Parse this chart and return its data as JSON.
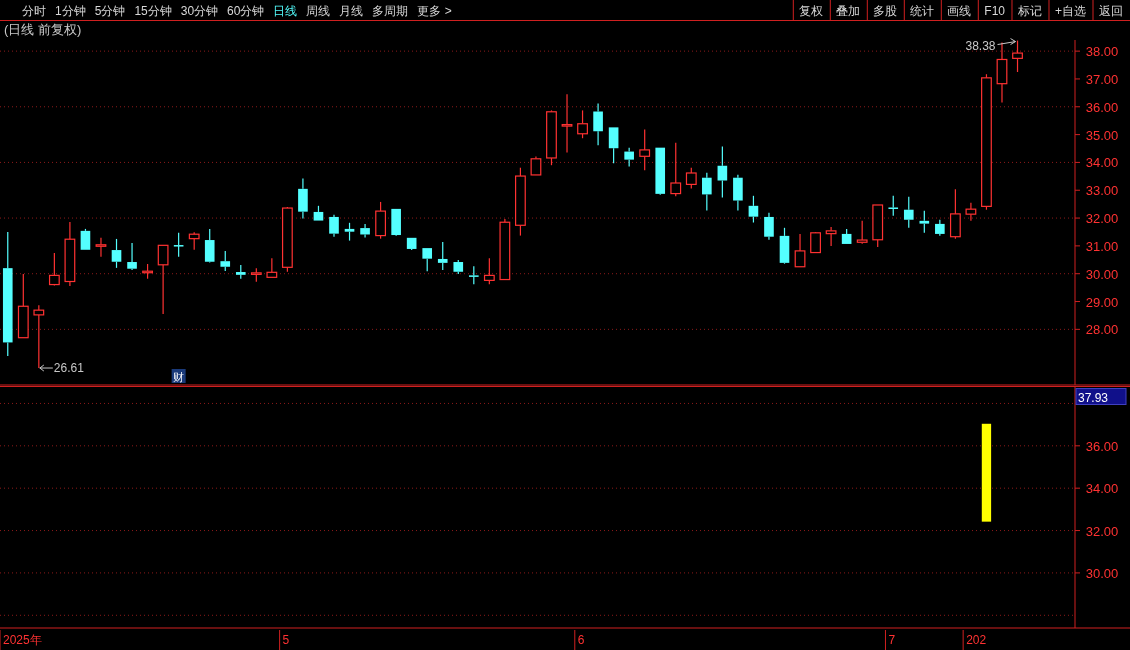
{
  "chart_data": [
    {
      "type": "candlestick",
      "title": "(日线 前复权)",
      "categories": [
        null,
        null,
        null,
        null,
        null,
        null,
        null,
        null,
        null,
        null,
        null,
        null,
        null,
        null,
        null,
        null,
        null,
        null,
        null,
        null,
        null,
        null,
        null,
        null,
        null,
        null,
        null,
        null,
        null,
        null,
        null,
        null,
        null,
        null,
        null,
        null,
        null,
        null,
        null,
        null,
        null,
        null,
        null,
        null,
        null,
        null,
        null,
        null,
        null,
        null,
        null,
        null,
        null,
        null,
        null,
        null,
        null,
        null,
        null,
        null,
        null,
        null,
        null,
        null,
        null,
        null
      ],
      "tick_labels": "y",
      "ohlc": [
        [
          30.2,
          31.5,
          27.04,
          27.53
        ],
        [
          27.7,
          29.99,
          27.7,
          28.83
        ],
        [
          28.52,
          28.87,
          26.61,
          28.69
        ],
        [
          29.61,
          30.74,
          29.58,
          29.94
        ],
        [
          29.72,
          31.86,
          29.56,
          31.24
        ],
        [
          31.54,
          31.61,
          30.86,
          30.86
        ],
        [
          31.0,
          31.29,
          30.61,
          31.04
        ],
        [
          30.85,
          31.25,
          30.21,
          30.43
        ],
        [
          30.42,
          31.1,
          30.13,
          30.18
        ],
        [
          30.06,
          30.35,
          29.82,
          30.09
        ],
        [
          30.32,
          31.02,
          28.55,
          31.02
        ],
        [
          31.03,
          31.47,
          30.61,
          31.0
        ],
        [
          31.26,
          31.49,
          30.86,
          31.42
        ],
        [
          31.21,
          31.61,
          30.4,
          30.43
        ],
        [
          30.45,
          30.82,
          30.1,
          30.25
        ],
        [
          30.06,
          30.31,
          29.82,
          29.96
        ],
        [
          30.0,
          30.2,
          29.71,
          30.03
        ],
        [
          29.87,
          30.56,
          29.87,
          30.05
        ],
        [
          30.23,
          32.4,
          30.07,
          32.36
        ],
        [
          33.05,
          33.42,
          31.98,
          32.23
        ],
        [
          32.22,
          32.44,
          31.91,
          31.91
        ],
        [
          32.04,
          32.12,
          31.33,
          31.44
        ],
        [
          31.61,
          31.83,
          31.19,
          31.51
        ],
        [
          31.64,
          31.79,
          31.3,
          31.41
        ],
        [
          31.37,
          32.58,
          31.26,
          32.25
        ],
        [
          32.33,
          32.33,
          31.36,
          31.39
        ],
        [
          31.29,
          31.29,
          30.85,
          30.89
        ],
        [
          30.92,
          30.92,
          30.09,
          30.54
        ],
        [
          30.53,
          31.14,
          30.13,
          30.39
        ],
        [
          30.42,
          30.49,
          29.99,
          30.07
        ],
        [
          29.94,
          30.27,
          29.62,
          29.9
        ],
        [
          29.76,
          30.56,
          29.62,
          29.94
        ],
        [
          29.79,
          31.97,
          29.79,
          31.85
        ],
        [
          31.74,
          33.81,
          31.37,
          33.51
        ],
        [
          33.55,
          34.21,
          33.55,
          34.13
        ],
        [
          34.16,
          35.87,
          33.9,
          35.82
        ],
        [
          35.32,
          36.45,
          34.36,
          35.36
        ],
        [
          35.03,
          35.87,
          34.87,
          35.39
        ],
        [
          35.83,
          36.12,
          34.62,
          35.12
        ],
        [
          35.26,
          35.26,
          33.97,
          34.51
        ],
        [
          34.39,
          34.53,
          33.85,
          34.1
        ],
        [
          34.22,
          35.18,
          33.72,
          34.45
        ],
        [
          34.53,
          34.53,
          32.84,
          32.87
        ],
        [
          32.88,
          34.71,
          32.78,
          33.26
        ],
        [
          33.21,
          33.81,
          33.06,
          33.62
        ],
        [
          33.45,
          33.63,
          32.27,
          32.85
        ],
        [
          33.88,
          34.57,
          32.74,
          33.35
        ],
        [
          33.45,
          33.56,
          32.27,
          32.63
        ],
        [
          32.44,
          32.8,
          31.84,
          32.05
        ],
        [
          32.04,
          32.19,
          31.22,
          31.33
        ],
        [
          31.36,
          31.65,
          30.36,
          30.39
        ],
        [
          30.25,
          31.43,
          30.25,
          30.82
        ],
        [
          30.76,
          31.5,
          30.76,
          31.47
        ],
        [
          31.44,
          31.68,
          31.0,
          31.54
        ],
        [
          31.43,
          31.61,
          31.07,
          31.07
        ],
        [
          31.13,
          31.9,
          31.08,
          31.21
        ],
        [
          31.22,
          32.47,
          30.96,
          32.47
        ],
        [
          32.38,
          32.8,
          32.08,
          32.34
        ],
        [
          32.3,
          32.77,
          31.65,
          31.94
        ],
        [
          31.9,
          32.26,
          31.47,
          31.8
        ],
        [
          31.79,
          31.94,
          31.36,
          31.43
        ],
        [
          31.33,
          33.04,
          31.26,
          32.15
        ],
        [
          32.14,
          32.55,
          31.9,
          32.32
        ],
        [
          32.42,
          37.17,
          32.3,
          37.04
        ],
        [
          36.83,
          38.31,
          36.15,
          37.7
        ],
        [
          37.74,
          38.38,
          37.25,
          37.93
        ]
      ],
      "ylim": [
        26.0,
        38.4
      ],
      "yticks": [
        {
          "value": 28,
          "label": "28.00"
        },
        {
          "value": 29,
          "label": "29.00"
        },
        {
          "value": 30,
          "label": "30.00"
        },
        {
          "value": 31,
          "label": "31.00"
        },
        {
          "value": 32,
          "label": "32.00"
        },
        {
          "value": 33,
          "label": "33.00"
        },
        {
          "value": 34,
          "label": "34.00"
        },
        {
          "value": 35,
          "label": "35.00"
        },
        {
          "value": 36,
          "label": "36.00"
        },
        {
          "value": 37,
          "label": "37.00"
        },
        {
          "value": 38,
          "label": "38.00"
        }
      ],
      "ref_lines": [
        {
          "axis": "y",
          "value": 28,
          "color": "#8c1a1a",
          "line_style": "dotted"
        },
        {
          "axis": "y",
          "value": 30,
          "color": "#8c1a1a",
          "line_style": "dotted"
        },
        {
          "axis": "y",
          "value": 32,
          "color": "#8c1a1a",
          "line_style": "dotted"
        },
        {
          "axis": "y",
          "value": 34,
          "color": "#8c1a1a",
          "line_style": "dotted"
        },
        {
          "axis": "y",
          "value": 36,
          "color": "#8c1a1a",
          "line_style": "dotted"
        },
        {
          "axis": "y",
          "value": 38,
          "color": "#8c1a1a",
          "line_style": "dotted"
        }
      ],
      "annotations": [
        "分时",
        "1分钟",
        "5分钟",
        "15分钟",
        "30分钟",
        "60分钟",
        "日线",
        "周线",
        "月线",
        "多周期",
        "更多 >",
        "复权",
        "叠加",
        "多股",
        "统计",
        "画线",
        "F10",
        "标记",
        "+自选",
        "返回",
        "26.61",
        "38.38",
        "财"
      ]
    },
    {
      "type": "bar",
      "categories": [
        "2025年",
        null,
        null,
        null,
        null,
        null,
        null,
        null,
        null,
        null,
        null,
        null,
        null,
        null,
        null,
        null,
        null,
        null,
        "5",
        null,
        null,
        null,
        null,
        null,
        null,
        null,
        null,
        null,
        null,
        null,
        null,
        null,
        null,
        null,
        null,
        null,
        null,
        "6",
        null,
        null,
        null,
        null,
        null,
        null,
        null,
        null,
        null,
        null,
        null,
        null,
        null,
        null,
        null,
        null,
        null,
        null,
        null,
        "7",
        null,
        null,
        null,
        null,
        "202",
        null,
        null,
        null
      ],
      "values": [
        null,
        null,
        null,
        null,
        null,
        null,
        null,
        null,
        null,
        null,
        null,
        null,
        null,
        null,
        null,
        null,
        null,
        null,
        null,
        null,
        null,
        null,
        null,
        null,
        null,
        null,
        null,
        null,
        null,
        null,
        null,
        null,
        null,
        null,
        null,
        null,
        null,
        null,
        null,
        null,
        null,
        null,
        null,
        null,
        null,
        null,
        null,
        null,
        null,
        null,
        null,
        null,
        null,
        null,
        null,
        null,
        null,
        null,
        null,
        null,
        null,
        null,
        null,
        4.62,
        null,
        null
      ],
      "base": [
        null,
        null,
        null,
        null,
        null,
        null,
        null,
        null,
        null,
        null,
        null,
        null,
        null,
        null,
        null,
        null,
        null,
        null,
        null,
        null,
        null,
        null,
        null,
        null,
        null,
        null,
        null,
        null,
        null,
        null,
        null,
        null,
        null,
        null,
        null,
        null,
        null,
        null,
        null,
        null,
        null,
        null,
        null,
        null,
        null,
        null,
        null,
        null,
        null,
        null,
        null,
        null,
        null,
        null,
        null,
        null,
        null,
        null,
        null,
        null,
        null,
        null,
        null,
        32.42,
        null,
        null
      ],
      "color": "#ffff00",
      "ylim": [
        27.4,
        38.8
      ],
      "yticks": [
        {
          "value": 30,
          "label": "30.00"
        },
        {
          "value": 32,
          "label": "32.00"
        },
        {
          "value": 34,
          "label": "34.00"
        },
        {
          "value": 36,
          "label": "36.00"
        }
      ],
      "ref_lines": [
        {
          "axis": "y",
          "value": 28,
          "color": "#8c1a1a",
          "line_style": "dotted"
        },
        {
          "axis": "y",
          "value": 30,
          "color": "#8c1a1a",
          "line_style": "dotted"
        },
        {
          "axis": "y",
          "value": 32,
          "color": "#8c1a1a",
          "line_style": "dotted"
        },
        {
          "axis": "y",
          "value": 34,
          "color": "#8c1a1a",
          "line_style": "dotted"
        },
        {
          "axis": "y",
          "value": 36,
          "color": "#8c1a1a",
          "line_style": "dotted"
        },
        {
          "axis": "y",
          "value": 38,
          "color": "#8c1a1a",
          "line_style": "dotted"
        }
      ],
      "annotations": [
        "37.93"
      ]
    }
  ]
}
